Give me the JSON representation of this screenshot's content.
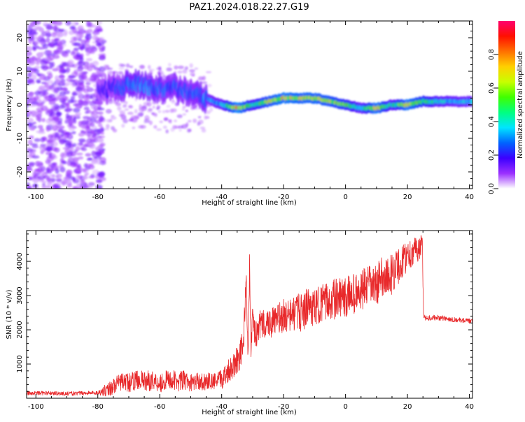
{
  "title": "PAZ1.2024.018.22.27.G19",
  "colors": {
    "snr_line": "#e8282a",
    "spectrogram_track": "#00c8a0",
    "spectrogram_noise": "#7a1ee6"
  },
  "chart_data": [
    {
      "type": "heatmap",
      "title": "PAZ1.2024.018.22.27.G19",
      "xlabel": "Height of straight line (km)",
      "ylabel": "Frequency (Hz)",
      "xlim": [
        -103,
        41
      ],
      "ylim": [
        -25,
        25
      ],
      "xticks": [
        -100,
        -80,
        -60,
        -40,
        -20,
        0,
        20,
        40
      ],
      "yticks": [
        -20,
        -10,
        0,
        10,
        20
      ],
      "colorbar": {
        "label": "Normalized spectral amplitude",
        "range": [
          0.0,
          1.0
        ],
        "ticks": [
          0.0,
          0.2,
          0.4,
          0.6,
          0.8
        ],
        "colormap": [
          "#ffffff",
          "#9b30ff",
          "#3c00ff",
          "#0064ff",
          "#00e5ff",
          "#00ff80",
          "#40ff00",
          "#c8ff00",
          "#ffd000",
          "#ff7000",
          "#ff1000",
          "#ff0070"
        ]
      },
      "frequency_track": {
        "height_km": [
          -80,
          -75,
          -70,
          -65,
          -60,
          -55,
          -50,
          -45,
          -40,
          -35,
          -30,
          -25,
          -20,
          -15,
          -10,
          -5,
          0,
          5,
          10,
          15,
          20,
          25,
          30,
          35,
          41
        ],
        "frequency_hz": [
          4,
          5,
          6,
          6,
          5,
          5,
          3,
          2,
          0,
          -1,
          0,
          1,
          2,
          2,
          2,
          1,
          0,
          -1,
          -1,
          0,
          0,
          1,
          1,
          1,
          1
        ],
        "amplitude": [
          0.2,
          0.25,
          0.35,
          0.35,
          0.3,
          0.3,
          0.3,
          0.35,
          0.4,
          0.85,
          0.5,
          0.7,
          0.8,
          0.75,
          0.75,
          0.7,
          0.6,
          0.45,
          0.8,
          0.45,
          0.8,
          0.6,
          0.45,
          0.4,
          0.4
        ]
      }
    },
    {
      "type": "line",
      "xlabel": "Height of straight line (km)",
      "ylabel": "SNR (10 * v/v)",
      "xlim": [
        -103,
        41
      ],
      "ylim": [
        0,
        4900
      ],
      "xticks": [
        -100,
        -80,
        -60,
        -40,
        -20,
        0,
        20,
        40
      ],
      "yticks": [
        1000,
        2000,
        3000,
        4000
      ],
      "series": [
        {
          "x": [
            -103,
            -95,
            -90,
            -85,
            -80,
            -77,
            -75,
            -72,
            -70,
            -67,
            -65,
            -62,
            -60,
            -57,
            -55,
            -52,
            -50,
            -48,
            -46,
            -44,
            -42,
            -40,
            -38,
            -36,
            -34,
            -33,
            -32,
            -31.5,
            -31,
            -30.5,
            -30,
            -29,
            -28,
            -26,
            -24,
            -22,
            -20,
            -18,
            -16,
            -14,
            -12,
            -10,
            -8,
            -6,
            -4,
            -2,
            0,
            2,
            4,
            6,
            8,
            10,
            12,
            14,
            16,
            18,
            19,
            20,
            22,
            24,
            24.8,
            25.2,
            27,
            30,
            35,
            41
          ],
          "y": [
            150,
            150,
            130,
            150,
            160,
            250,
            350,
            500,
            450,
            550,
            500,
            520,
            450,
            550,
            500,
            520,
            450,
            500,
            480,
            500,
            480,
            550,
            800,
            1000,
            1300,
            1600,
            3500,
            1000,
            3800,
            1400,
            2300,
            1800,
            2100,
            2200,
            2200,
            2300,
            2400,
            2400,
            2500,
            2500,
            2700,
            2600,
            2800,
            2800,
            2900,
            2900,
            2900,
            3100,
            3000,
            3200,
            3300,
            3300,
            3600,
            3500,
            3800,
            3900,
            4100,
            4200,
            4300,
            4400,
            4500,
            2350,
            2350,
            2350,
            2300,
            2250
          ],
          "noise": [
            60,
            60,
            60,
            60,
            60,
            200,
            250,
            250,
            280,
            280,
            300,
            300,
            300,
            300,
            300,
            300,
            250,
            250,
            250,
            250,
            250,
            300,
            350,
            400,
            450,
            500,
            400,
            400,
            400,
            400,
            450,
            400,
            450,
            450,
            450,
            450,
            500,
            500,
            550,
            550,
            550,
            550,
            550,
            550,
            600,
            600,
            600,
            600,
            600,
            600,
            600,
            600,
            600,
            600,
            600,
            500,
            500,
            500,
            400,
            350,
            300,
            80,
            80,
            80,
            70,
            70
          ]
        }
      ]
    }
  ]
}
